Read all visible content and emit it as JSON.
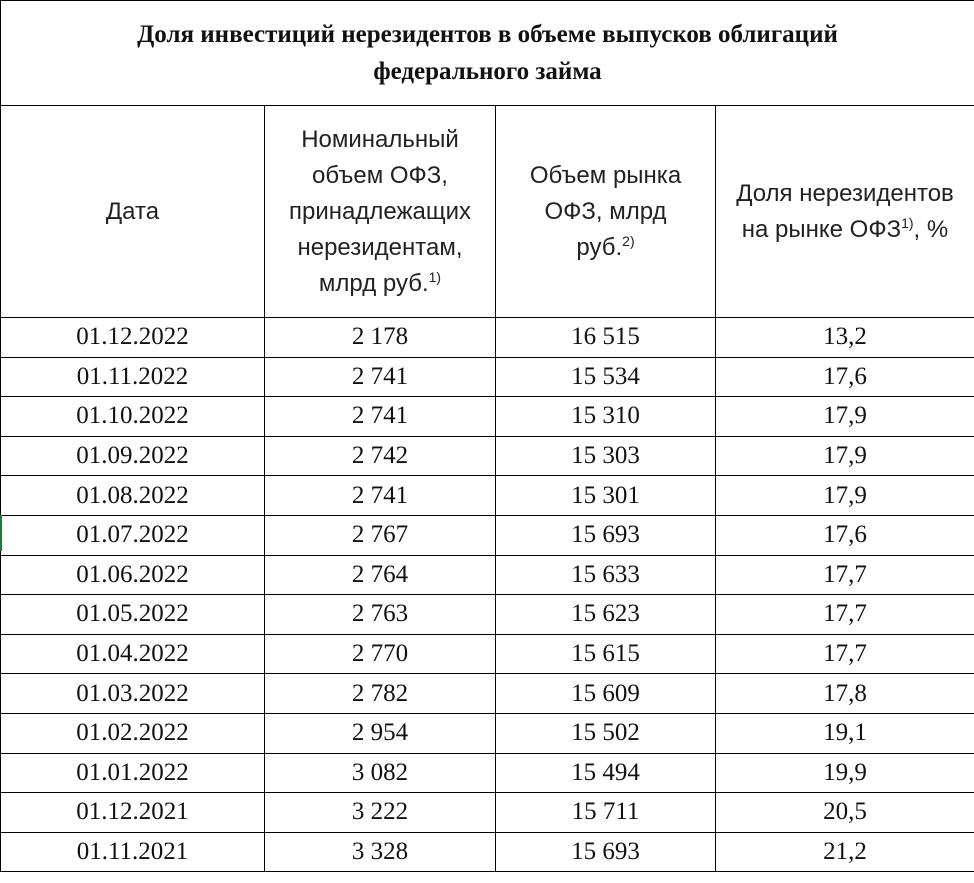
{
  "table": {
    "title_line1": "Доля инвестиций нерезидентов в объеме выпусков облигаций",
    "title_line2": "федерального займа",
    "headers": {
      "date": "Дата",
      "nominal_text": "Номинальный объем ОФЗ, принадлежащих нерезидентам, млрд руб.",
      "nominal_note": "1)",
      "market_text": "Объем рынка ОФЗ, млрд руб.",
      "market_note": "2)",
      "share_text": "Доля нерезидентов на рынке ОФЗ",
      "share_note": "1)",
      "share_suffix": ", %"
    },
    "rows": [
      {
        "date": "01.12.2022",
        "nominal": "2 178",
        "market": "16 515",
        "share": "13,2"
      },
      {
        "date": "01.11.2022",
        "nominal": "2 741",
        "market": "15 534",
        "share": "17,6"
      },
      {
        "date": "01.10.2022",
        "nominal": "2 741",
        "market": "15 310",
        "share": "17,9"
      },
      {
        "date": "01.09.2022",
        "nominal": "2 742",
        "market": "15 303",
        "share": "17,9"
      },
      {
        "date": "01.08.2022",
        "nominal": "2 741",
        "market": "15 301",
        "share": "17,9"
      },
      {
        "date": "01.07.2022",
        "nominal": "2 767",
        "market": "15 693",
        "share": "17,6"
      },
      {
        "date": "01.06.2022",
        "nominal": "2 764",
        "market": "15 633",
        "share": "17,7"
      },
      {
        "date": "01.05.2022",
        "nominal": "2 763",
        "market": "15 623",
        "share": "17,7"
      },
      {
        "date": "01.04.2022",
        "nominal": "2 770",
        "market": "15 615",
        "share": "17,7"
      },
      {
        "date": "01.03.2022",
        "nominal": "2 782",
        "market": "15 609",
        "share": "17,8"
      },
      {
        "date": "01.02.2022",
        "nominal": "2 954",
        "market": "15 502",
        "share": "19,1"
      },
      {
        "date": "01.01.2022",
        "nominal": "3 082",
        "market": "15 494",
        "share": "19,9"
      },
      {
        "date": "01.12.2021",
        "nominal": "3 222",
        "market": "15 711",
        "share": "20,5"
      },
      {
        "date": "01.11.2021",
        "nominal": "3 328",
        "market": "15 693",
        "share": "21,2"
      }
    ]
  }
}
